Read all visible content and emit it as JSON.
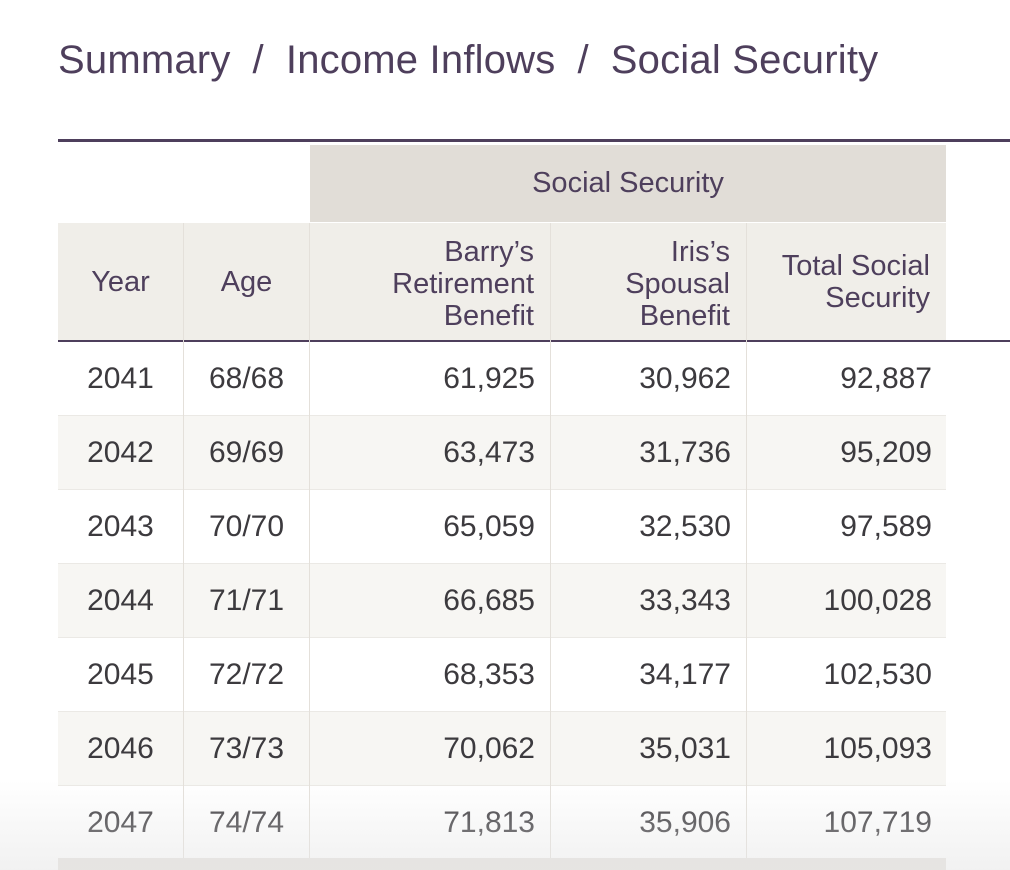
{
  "breadcrumb": {
    "items": [
      "Summary",
      "Income Inflows",
      "Social Security"
    ],
    "separator": "/"
  },
  "table": {
    "group_header": "Social Security",
    "columns": {
      "year": "Year",
      "age": "Age",
      "barry": [
        "Barry’s",
        "Retirement",
        "Benefit"
      ],
      "iris": [
        "Iris’s",
        "Spousal",
        "Benefit"
      ],
      "total": [
        "Total Social",
        "Security"
      ]
    },
    "rows": [
      {
        "year": "2041",
        "age": "68/68",
        "barry": "61,925",
        "iris": "30,962",
        "total": "92,887"
      },
      {
        "year": "2042",
        "age": "69/69",
        "barry": "63,473",
        "iris": "31,736",
        "total": "95,209"
      },
      {
        "year": "2043",
        "age": "70/70",
        "barry": "65,059",
        "iris": "32,530",
        "total": "97,589"
      },
      {
        "year": "2044",
        "age": "71/71",
        "barry": "66,685",
        "iris": "33,343",
        "total": "100,028"
      },
      {
        "year": "2045",
        "age": "72/72",
        "barry": "68,353",
        "iris": "34,177",
        "total": "102,530"
      },
      {
        "year": "2046",
        "age": "73/73",
        "barry": "70,062",
        "iris": "35,031",
        "total": "105,093"
      },
      {
        "year": "2047",
        "age": "74/74",
        "barry": "71,813",
        "iris": "35,906",
        "total": "107,719"
      }
    ]
  },
  "colors": {
    "accent": "#4e3f5c",
    "group_header_bg": "#e1ddd7",
    "column_header_bg": "#f0eee9",
    "row_alt_bg": "#f7f6f3"
  }
}
